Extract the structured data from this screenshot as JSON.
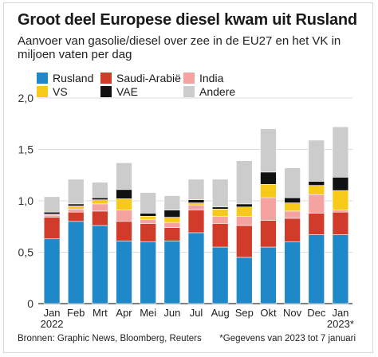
{
  "chart_data": {
    "type": "bar",
    "stacked": true,
    "title": "Groot deel Europese diesel kwam uit Rusland",
    "subtitle": "Aanvoer van gasolie/diesel over zee in de EU27 en het VK in miljoen vaten per dag",
    "categories": [
      "Jan",
      "Feb",
      "Mrt",
      "Apr",
      "Mei",
      "Jun",
      "Jul",
      "Aug",
      "Sep",
      "Okt",
      "Nov",
      "Dec",
      "Jan"
    ],
    "category_sublabels": [
      "2022",
      "",
      "",
      "",
      "",
      "",
      "",
      "",
      "",
      "",
      "",
      "",
      "2023*"
    ],
    "ylim": [
      0,
      2.0
    ],
    "yticks": [
      0,
      0.5,
      1.0,
      1.5,
      2.0
    ],
    "ytick_labels": [
      "0",
      "0,5",
      "1,0",
      "1,5",
      "2,0"
    ],
    "grid": true,
    "legend_position": "top",
    "series": [
      {
        "name": "Rusland",
        "color": "#1f88c8",
        "values": [
          0.63,
          0.8,
          0.76,
          0.61,
          0.6,
          0.61,
          0.69,
          0.55,
          0.45,
          0.55,
          0.6,
          0.67,
          0.67
        ]
      },
      {
        "name": "Saudi-Arabië",
        "color": "#d13b2a",
        "values": [
          0.21,
          0.09,
          0.14,
          0.19,
          0.18,
          0.13,
          0.22,
          0.23,
          0.31,
          0.26,
          0.23,
          0.21,
          0.22
        ]
      },
      {
        "name": "India",
        "color": "#f4a3a0",
        "values": [
          0.02,
          0.03,
          0.07,
          0.11,
          0.04,
          0.05,
          0.05,
          0.07,
          0.09,
          0.22,
          0.07,
          0.18,
          0.02
        ]
      },
      {
        "name": "VS",
        "color": "#f7ca1a",
        "values": [
          0.01,
          0.03,
          0.04,
          0.11,
          0.03,
          0.05,
          0.02,
          0.07,
          0.09,
          0.13,
          0.08,
          0.09,
          0.19
        ]
      },
      {
        "name": "VAE",
        "color": "#111111",
        "values": [
          0.02,
          0.02,
          0.02,
          0.09,
          0.03,
          0.07,
          0.03,
          0.02,
          0.03,
          0.12,
          0.05,
          0.04,
          0.13
        ]
      },
      {
        "name": "Andere",
        "color": "#cccccc",
        "values": [
          0.15,
          0.24,
          0.15,
          0.26,
          0.2,
          0.14,
          0.2,
          0.27,
          0.42,
          0.42,
          0.29,
          0.4,
          0.49
        ]
      }
    ],
    "source": "Bronnen: Graphic News, Bloomberg, Reuters",
    "note": "*Gegevens van 2023 tot 7 januari"
  }
}
